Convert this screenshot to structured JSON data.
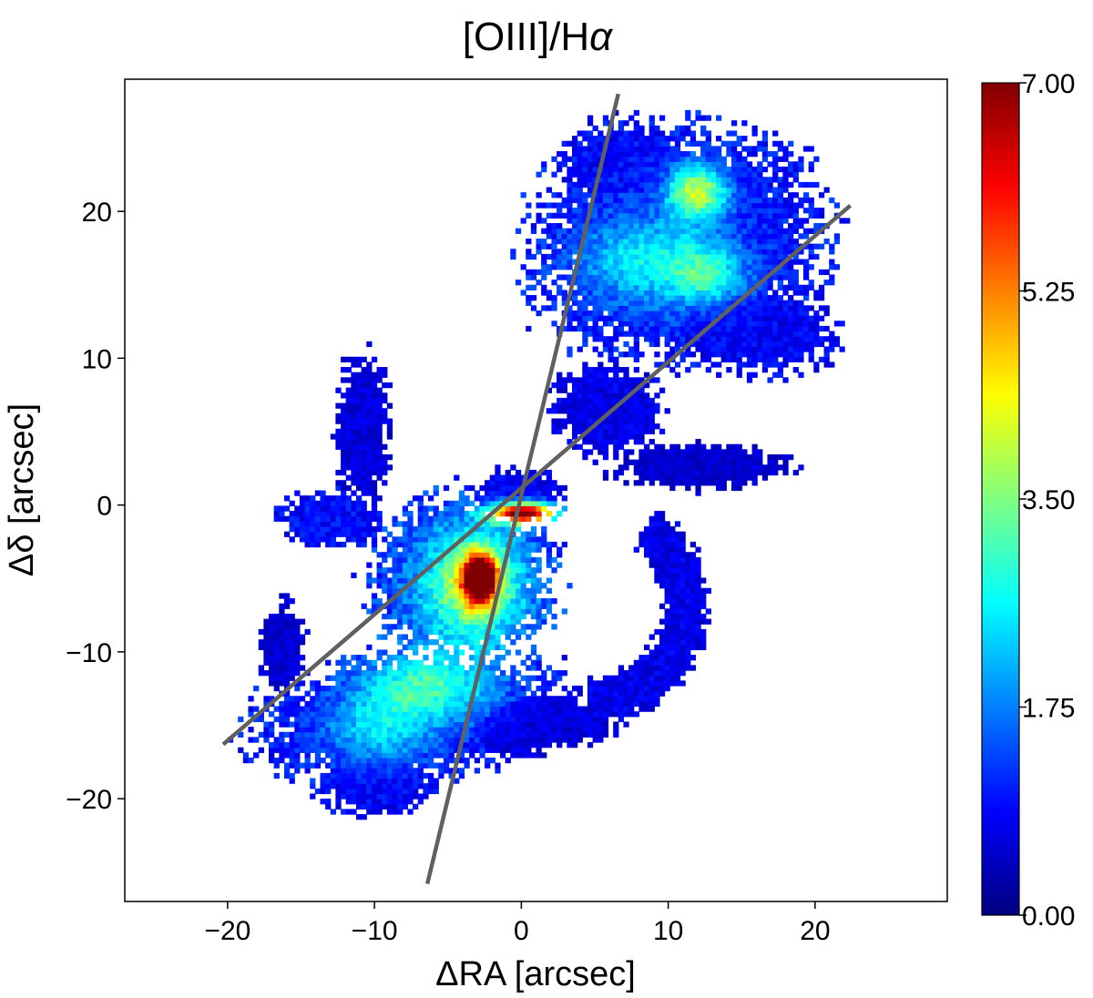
{
  "chart_data": {
    "type": "heatmap",
    "title": "[OIII]/Hα",
    "title_plain": "[OIII]/H",
    "title_symbol": "α",
    "xlabel": "ΔRA [arcsec]",
    "ylabel": "Δδ [arcsec]",
    "xlim": [
      -27,
      29
    ],
    "ylim": [
      -27,
      29
    ],
    "x_ticks": [
      -20,
      -10,
      0,
      10,
      20
    ],
    "y_ticks": [
      -20,
      -10,
      0,
      10,
      20
    ],
    "x_tick_labels": [
      "−20",
      "−10",
      "0",
      "10",
      "20"
    ],
    "y_tick_labels": [
      "−20",
      "−10",
      "0",
      "10",
      "20"
    ],
    "colorbar": {
      "colormap": "jet",
      "range": [
        0,
        7
      ],
      "ticks": [
        0,
        1.75,
        3.5,
        5.25,
        7
      ],
      "tick_labels": [
        "0.00",
        "1.75",
        "3.50",
        "5.25",
        "7.00"
      ]
    },
    "overlay_lines": [
      {
        "name": "line-steep",
        "color": "#606060",
        "points": [
          [
            -6.4,
            -25.8
          ],
          [
            6.6,
            28.0
          ]
        ]
      },
      {
        "name": "line-shallow",
        "color": "#606060",
        "points": [
          [
            -20.3,
            -16.3
          ],
          [
            22.4,
            20.4
          ]
        ]
      }
    ],
    "regions": [
      {
        "name": "ne-lobe",
        "center": [
          10.5,
          17.5
        ],
        "radii": [
          9.5,
          7.5
        ],
        "angle": 10,
        "base": 1.1
      },
      {
        "name": "ne-lobe-upper",
        "center": [
          7,
          23
        ],
        "radii": [
          4.5,
          3
        ],
        "angle": 0,
        "base": 1.0
      },
      {
        "name": "ne-lobe-east",
        "center": [
          15,
          12
        ],
        "radii": [
          6,
          3
        ],
        "angle": -10,
        "base": 0.9
      },
      {
        "name": "mid-stream",
        "center": [
          5.5,
          6.5
        ],
        "radii": [
          3.5,
          3
        ],
        "angle": 0,
        "base": 0.8
      },
      {
        "name": "mid-east-bits",
        "center": [
          12,
          2.5
        ],
        "radii": [
          6,
          1.5
        ],
        "angle": 0,
        "base": 0.6
      },
      {
        "name": "west-knot",
        "center": [
          -13,
          -1
        ],
        "radii": [
          3.5,
          1.8
        ],
        "angle": 0,
        "base": 1.0
      },
      {
        "name": "central-clump",
        "center": [
          -4.2,
          -5.2
        ],
        "radii": [
          6,
          5.5
        ],
        "angle": 0,
        "base": 1.3
      },
      {
        "name": "sw-lobe",
        "center": [
          -8,
          -14.5
        ],
        "radii": [
          10,
          4.2
        ],
        "angle": 8,
        "base": 1.1
      },
      {
        "name": "sw-lobe-lower",
        "center": [
          -10,
          -19
        ],
        "radii": [
          4,
          2.2
        ],
        "angle": 0,
        "base": 0.9
      },
      {
        "name": "southern-bridge",
        "center": [
          0.5,
          -15
        ],
        "radii": [
          6,
          2
        ],
        "angle": 5,
        "base": 0.7
      },
      {
        "name": "nw-arm",
        "center": [
          -11,
          5
        ],
        "radii": [
          1.8,
          5
        ],
        "angle": 0,
        "base": 0.7
      },
      {
        "name": "west-arm",
        "center": [
          -16.5,
          -10
        ],
        "radii": [
          1.5,
          3
        ],
        "angle": 0,
        "base": 0.6
      },
      {
        "name": "nucleus-ring",
        "center": [
          -0.5,
          0.5
        ],
        "radii": [
          3,
          1.8
        ],
        "angle": 0,
        "base": 0.8
      }
    ],
    "arcs": [
      {
        "name": "eastern-arc",
        "center": [
          4.5,
          -7
        ],
        "radius": 6.5,
        "width": 1.5,
        "start": -90,
        "end": 55,
        "base": 0.8
      }
    ],
    "hotspots": [
      {
        "name": "central-peak",
        "center": [
          -3,
          -5.2
        ],
        "radii": [
          1.1,
          1.6
        ],
        "peak": 6.8
      },
      {
        "name": "central-glow",
        "center": [
          -3.5,
          -5.5
        ],
        "radii": [
          3.5,
          3.8
        ],
        "peak": 2.8
      },
      {
        "name": "ne-peak-1",
        "center": [
          11.8,
          21.2
        ],
        "radii": [
          2.0,
          1.8
        ],
        "peak": 3.0
      },
      {
        "name": "ne-peak-2",
        "center": [
          8.5,
          16.5
        ],
        "radii": [
          5,
          3
        ],
        "peak": 1.6
      },
      {
        "name": "ne-peak-3",
        "center": [
          12.5,
          15.5
        ],
        "radii": [
          2.5,
          2
        ],
        "peak": 1.5
      },
      {
        "name": "sw-glow",
        "center": [
          -6.5,
          -12.5
        ],
        "radii": [
          4.5,
          2.5
        ],
        "peak": 2.0
      },
      {
        "name": "sw-glow-2",
        "center": [
          -10,
          -15.5
        ],
        "radii": [
          3.5,
          2.5
        ],
        "peak": 1.3
      },
      {
        "name": "nucleus-hot",
        "center": [
          0.0,
          -0.7
        ],
        "radii": [
          2.2,
          0.7
        ],
        "peak": 6.5
      }
    ]
  }
}
